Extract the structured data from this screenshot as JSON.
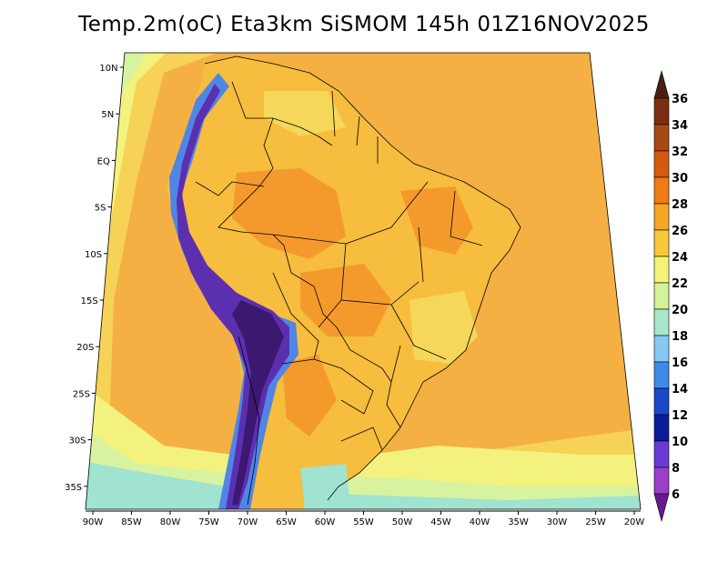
{
  "title": "Temp.2m(oC) Eta3km SiSMOM 145h 01Z16NOV2025",
  "latitude_labels": [
    "10N",
    "5N",
    "EQ",
    "5S",
    "10S",
    "15S",
    "20S",
    "25S",
    "30S",
    "35S"
  ],
  "longitude_labels": [
    "90W",
    "85W",
    "80W",
    "75W",
    "70W",
    "65W",
    "60W",
    "55W",
    "50W",
    "45W",
    "40W",
    "35W",
    "30W",
    "25W",
    "20W"
  ],
  "colorbar": {
    "labels": [
      "36",
      "34",
      "32",
      "30",
      "28",
      "26",
      "24",
      "22",
      "20",
      "18",
      "16",
      "14",
      "12",
      "10",
      "8",
      "6"
    ],
    "colors": [
      "#4a1f10",
      "#7a3010",
      "#a84813",
      "#d45a10",
      "#f07c16",
      "#f5a623",
      "#f7c839",
      "#f5f27a",
      "#d4f29a",
      "#a8e8c8",
      "#87c8f5",
      "#3f8ae8",
      "#1a48c8",
      "#0c1c98",
      "#6a3ad8",
      "#9a40c8",
      "#6a1890"
    ]
  },
  "colors": {
    "ocean_warm": "#f4b042",
    "ocean_mid": "#f6d256",
    "ocean_cool": "#f3f27e",
    "ocean_cold": "#d7f3a0",
    "ocean_coldest": "#9fe3d0",
    "land_hot": "#f49a2d",
    "land_warm": "#f6bd3e",
    "land_mid": "#f5d75a",
    "andes_outer": "#4f86e6",
    "andes_inner": "#5c2fb0",
    "andes_core": "#3c1870",
    "border": "#000000"
  }
}
